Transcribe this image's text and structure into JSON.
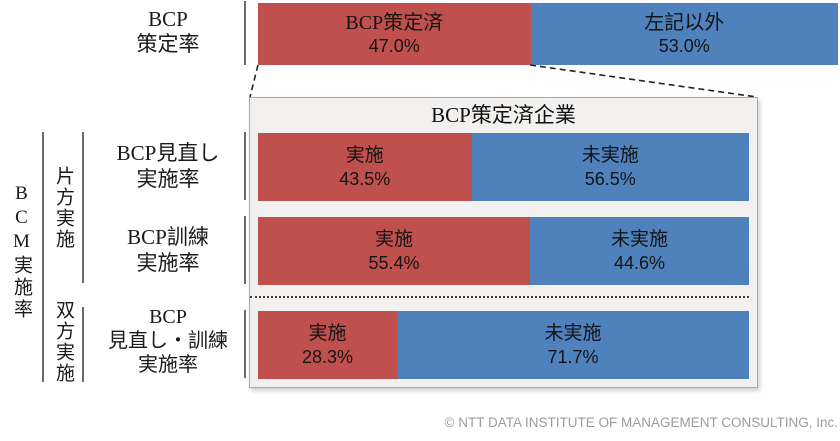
{
  "colors": {
    "implemented_red": "#c0504d",
    "not_implemented_blue": "#4f81bd",
    "panel_bg": "#f2f1ef",
    "panel_border": "#a8a8a8",
    "axis_line_gray": "#6a6a6a",
    "funnel_line_black": "#222222",
    "bar_text_black": "#141414",
    "footer_gray": "#9c9c9c"
  },
  "chart_data": {
    "type": "bar",
    "subtype": "horizontal-100pct-stacked",
    "unit": "percent",
    "axis_range": [
      0,
      100
    ],
    "grid": false,
    "legend": false,
    "inner_box_title": "BCP策定済企業",
    "left_axis_label": "BCM実施率",
    "section_labels": [
      "片方実施",
      "双方実施"
    ],
    "bars": [
      {
        "id": "bcp-formulation-rate",
        "label_lines": [
          "BCP",
          "策定率"
        ],
        "section": "",
        "segments": [
          {
            "name": "BCP策定済",
            "value": 47.0,
            "display": "47.0%",
            "color": "#c0504d"
          },
          {
            "name": "左記以外",
            "value": 53.0,
            "display": "53.0%",
            "color": "#4f81bd"
          }
        ]
      },
      {
        "id": "bcp-review-implementation-rate",
        "label_lines": [
          "BCP見直し",
          "実施率"
        ],
        "section": "片方実施",
        "segments": [
          {
            "name": "実施",
            "value": 43.5,
            "display": "43.5%",
            "color": "#c0504d"
          },
          {
            "name": "未実施",
            "value": 56.5,
            "display": "56.5%",
            "color": "#4f81bd"
          }
        ]
      },
      {
        "id": "bcp-training-implementation-rate",
        "label_lines": [
          "BCP訓練",
          "実施率"
        ],
        "section": "片方実施",
        "segments": [
          {
            "name": "実施",
            "value": 55.4,
            "display": "55.4%",
            "color": "#c0504d"
          },
          {
            "name": "未実施",
            "value": 44.6,
            "display": "44.6%",
            "color": "#4f81bd"
          }
        ]
      },
      {
        "id": "bcp-review-and-training-implementation-rate",
        "label_lines": [
          "BCP",
          "見直し・訓練",
          "実施率"
        ],
        "section": "双方実施",
        "segments": [
          {
            "name": "実施",
            "value": 28.3,
            "display": "28.3%",
            "color": "#c0504d"
          },
          {
            "name": "未実施",
            "value": 71.7,
            "display": "71.7%",
            "color": "#4f81bd"
          }
        ]
      }
    ]
  },
  "footer": {
    "copyright": "© NTT DATA INSTITUTE OF MANAGEMENT CONSULTING, Inc."
  }
}
